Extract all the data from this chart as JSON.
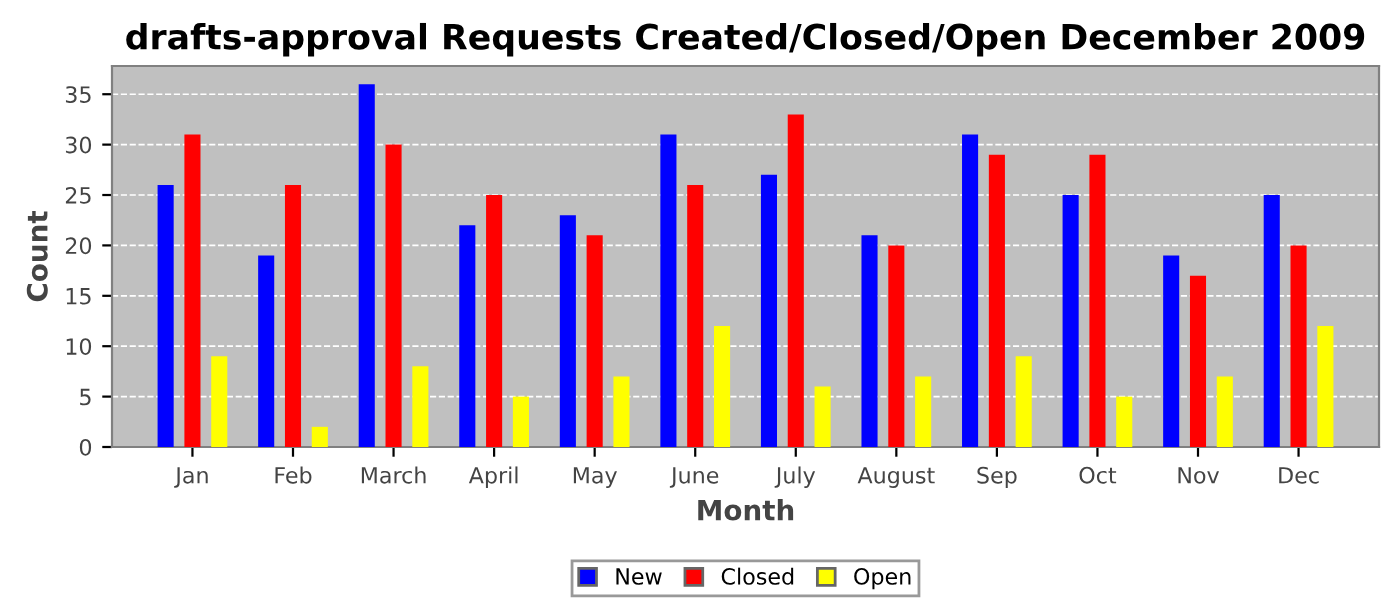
{
  "chart_data": {
    "type": "bar",
    "title": "drafts-approval Requests Created/Closed/Open December 2009",
    "xlabel": "Month",
    "ylabel": "Count",
    "categories": [
      "Jan",
      "Feb",
      "March",
      "April",
      "May",
      "June",
      "July",
      "August",
      "Sep",
      "Oct",
      "Nov",
      "Dec"
    ],
    "series": [
      {
        "name": "New",
        "color": "#0000ff",
        "values": [
          26,
          19,
          36,
          22,
          23,
          31,
          27,
          21,
          31,
          25,
          19,
          25
        ]
      },
      {
        "name": "Closed",
        "color": "#ff0000",
        "values": [
          31,
          26,
          30,
          25,
          21,
          26,
          33,
          20,
          29,
          29,
          17,
          20
        ]
      },
      {
        "name": "Open",
        "color": "#ffff00",
        "values": [
          9,
          2,
          8,
          5,
          7,
          12,
          6,
          7,
          9,
          5,
          7,
          12
        ]
      }
    ],
    "ylim": [
      0,
      37.8
    ],
    "yticks": [
      0,
      5,
      10,
      15,
      20,
      25,
      30,
      35
    ],
    "grid": "y",
    "legend": "bottom"
  }
}
